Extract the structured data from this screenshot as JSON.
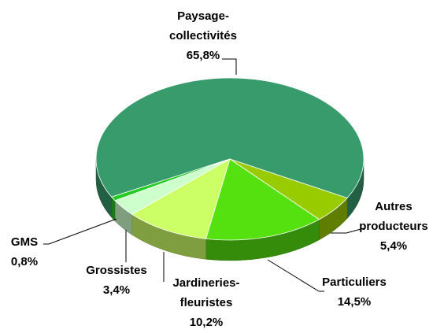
{
  "chart_data": {
    "type": "pie",
    "categories": [
      "Paysage-collectivités",
      "Autres producteurs",
      "Particuliers",
      "Jardineries-fleuristes",
      "Grossistes",
      "GMS"
    ],
    "values": [
      65.8,
      5.4,
      14.5,
      10.2,
      3.4,
      0.8
    ],
    "value_labels": [
      "65,8%",
      "5,4%",
      "14,5%",
      "10,2%",
      "3,4%",
      "0,8%"
    ],
    "colors": [
      "#389b6c",
      "#99cc00",
      "#55e010",
      "#ccff66",
      "#ccffcc",
      "#22cc22"
    ]
  }
}
